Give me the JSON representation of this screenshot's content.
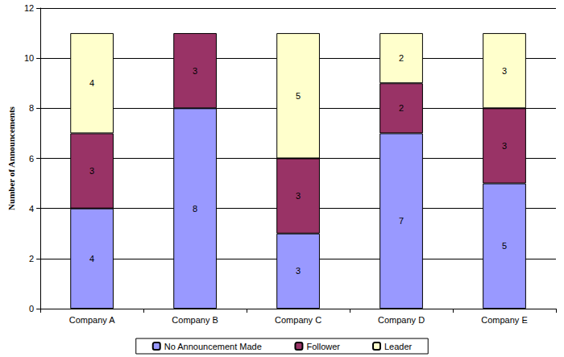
{
  "chart_data": {
    "type": "bar",
    "stacked": true,
    "data_labels": true,
    "grid": true,
    "legend": "bottom",
    "y_label": "Number of Announcements",
    "categories": [
      "Company A",
      "Company B",
      "Company C",
      "Company D",
      "Company E"
    ],
    "series": [
      {
        "name": "No Announcement Made",
        "color": "#9999ff",
        "values": [
          4,
          8,
          3,
          7,
          5
        ]
      },
      {
        "name": "Follower",
        "color": "#993366",
        "values": [
          3,
          3,
          3,
          2,
          3
        ]
      },
      {
        "name": "Leader",
        "color": "#ffffcc",
        "values": [
          4,
          null,
          5,
          2,
          3
        ]
      }
    ],
    "ylim": [
      0,
      12
    ],
    "yticks": [
      0,
      2,
      4,
      6,
      8,
      10,
      12
    ]
  }
}
